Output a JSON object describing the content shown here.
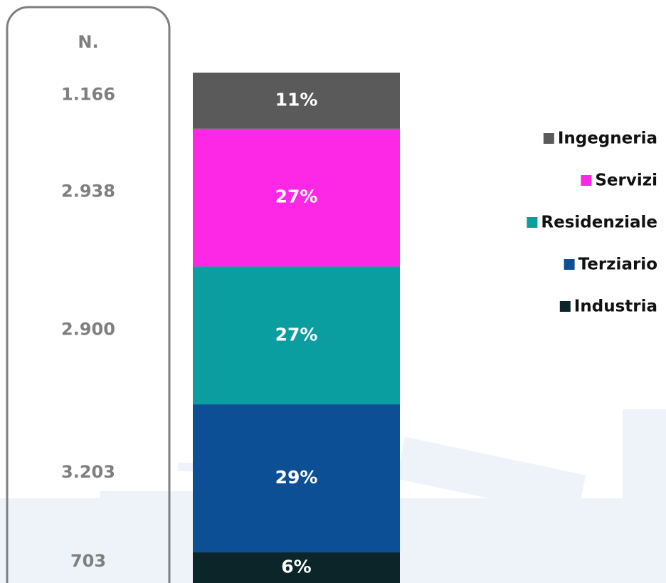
{
  "chart_data": {
    "type": "stacked-bar",
    "header": "N.",
    "ylim": [
      0,
      100
    ],
    "series": [
      {
        "name": "Industria",
        "color": "#0b2529",
        "values": [
          6
        ],
        "value_labels": [
          "6%"
        ],
        "count": {
          "value": 703,
          "label": "703"
        }
      },
      {
        "name": "Terziario",
        "color": "#0d4f94",
        "values": [
          29
        ],
        "value_labels": [
          "29%"
        ],
        "count": {
          "value": 3203,
          "label": "3.203"
        }
      },
      {
        "name": "Residenziale",
        "color": "#0a9ea1",
        "values": [
          27
        ],
        "value_labels": [
          "27%"
        ],
        "count": {
          "value": 2900,
          "label": "2.900"
        }
      },
      {
        "name": "Servizi",
        "color": "#fc28e6",
        "values": [
          27
        ],
        "value_labels": [
          "27%"
        ],
        "count": {
          "value": 2938,
          "label": "2.938"
        }
      },
      {
        "name": "Ingegneria",
        "color": "#5a5a5a",
        "values": [
          11
        ],
        "value_labels": [
          "11%"
        ],
        "count": {
          "value": 1166,
          "label": "1.166"
        }
      }
    ]
  }
}
